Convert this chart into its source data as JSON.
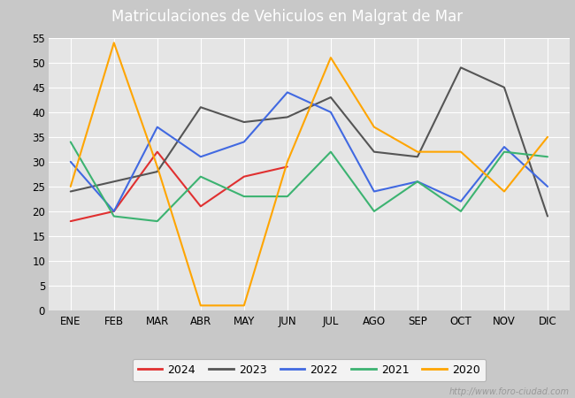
{
  "title": "Matriculaciones de Vehiculos en Malgrat de Mar",
  "title_color": "white",
  "title_bg_color": "#5b8dd9",
  "months": [
    "ENE",
    "FEB",
    "MAR",
    "ABR",
    "MAY",
    "JUN",
    "JUL",
    "AGO",
    "SEP",
    "OCT",
    "NOV",
    "DIC"
  ],
  "series": {
    "2024": {
      "color": "#e03030",
      "data": [
        18,
        20,
        32,
        21,
        27,
        29,
        null,
        null,
        null,
        null,
        null,
        null
      ]
    },
    "2023": {
      "color": "#555555",
      "data": [
        24,
        26,
        28,
        41,
        38,
        39,
        43,
        32,
        31,
        49,
        45,
        19
      ]
    },
    "2022": {
      "color": "#4169e1",
      "data": [
        30,
        20,
        37,
        31,
        34,
        44,
        40,
        24,
        26,
        22,
        33,
        25
      ]
    },
    "2021": {
      "color": "#3cb371",
      "data": [
        34,
        19,
        18,
        27,
        23,
        23,
        32,
        20,
        26,
        20,
        32,
        31
      ]
    },
    "2020": {
      "color": "#ffa500",
      "data": [
        25,
        54,
        29,
        1,
        1,
        30,
        51,
        37,
        32,
        32,
        24,
        35
      ]
    }
  },
  "ylim": [
    0,
    55
  ],
  "yticks": [
    0,
    5,
    10,
    15,
    20,
    25,
    30,
    35,
    40,
    45,
    50,
    55
  ],
  "plot_bg_color": "#e5e5e5",
  "outer_bg_color": "#c8c8c8",
  "grid_color": "white",
  "watermark": "http://www.foro-ciudad.com",
  "years_order": [
    "2024",
    "2023",
    "2022",
    "2021",
    "2020"
  ]
}
